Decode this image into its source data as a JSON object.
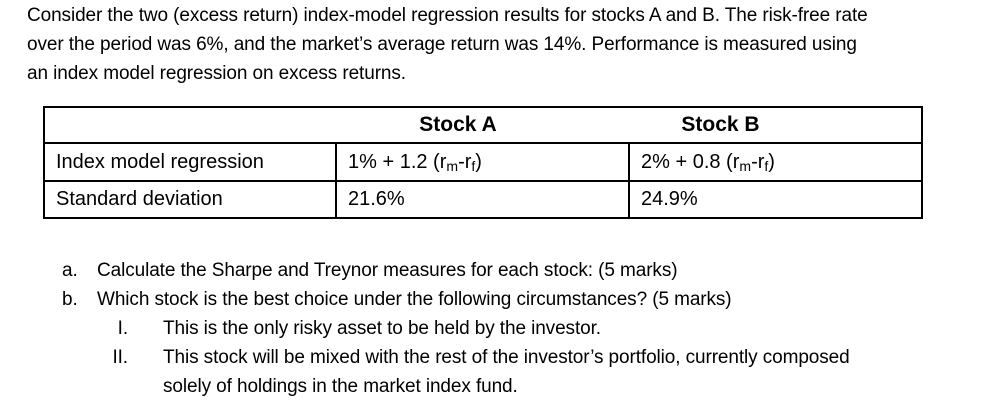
{
  "intro": {
    "lines": [
      "Consider the two (excess return) index-model regression results for stocks A and B. The risk-free rate",
      "over the period was 6%, and the market’s average return was 14%. Performance is measured using",
      "an index model regression on excess returns."
    ]
  },
  "table": {
    "header": {
      "stock_a": "Stock A",
      "stock_b": "Stock B"
    },
    "row_regression": {
      "label": "Index model regression",
      "stock_a": {
        "pre": "1% + 1.2 (r",
        "sub_m": "m",
        "mid": "-r",
        "sub_f": "f",
        "post": ")"
      },
      "stock_b": {
        "pre": "2% + 0.8 (r",
        "sub_m": "m",
        "mid": "-r",
        "sub_f": "f",
        "post": ")"
      }
    },
    "row_std": {
      "label": "Standard deviation",
      "stock_a": "21.6%",
      "stock_b": "24.9%"
    }
  },
  "questions": {
    "a": {
      "marker": "a.",
      "text": "Calculate the Sharpe and Treynor measures for each stock: (5 marks)"
    },
    "b": {
      "marker": "b.",
      "text": "Which stock is the best choice under the following circumstances? (5 marks)"
    },
    "sub_1": {
      "marker": "I.",
      "line_1": "This is the only risky asset to be held by the investor."
    },
    "sub_2": {
      "marker": "II.",
      "line_1": "This stock will be mixed with the rest of the investor’s portfolio, currently composed",
      "line_2": "solely of holdings in the market index fund."
    }
  }
}
